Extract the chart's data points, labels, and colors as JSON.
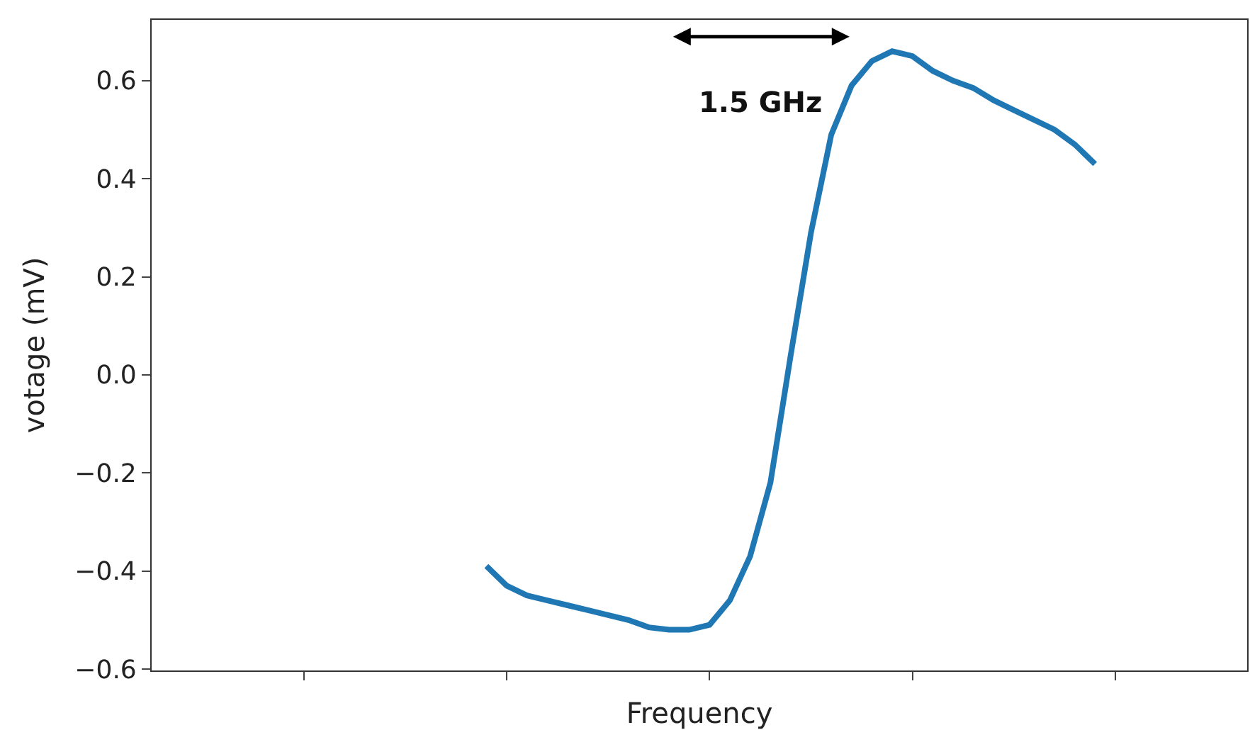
{
  "chart_data": {
    "type": "line",
    "xlabel": "Frequency",
    "ylabel": "votage (mV)",
    "categories": [
      null,
      null,
      null,
      null,
      null,
      null,
      null,
      null,
      null,
      null,
      null,
      null,
      null,
      null,
      null,
      null,
      null,
      null,
      null,
      null,
      null,
      null,
      null,
      null,
      null,
      null,
      null,
      null,
      null,
      null,
      null,
      null,
      null,
      null,
      null,
      null,
      null,
      null,
      null,
      null,
      null,
      null,
      null,
      null,
      null,
      null,
      null,
      null,
      null,
      null,
      null,
      null,
      null,
      null
    ],
    "series": [
      {
        "color": "#1f77b4",
        "values": [
          null,
          null,
          null,
          null,
          null,
          null,
          null,
          null,
          null,
          null,
          null,
          null,
          null,
          null,
          null,
          null,
          -0.39,
          -0.43,
          -0.45,
          -0.46,
          -0.47,
          -0.48,
          -0.49,
          -0.5,
          -0.515,
          -0.52,
          -0.52,
          -0.51,
          -0.46,
          -0.37,
          -0.22,
          0.04,
          0.29,
          0.49,
          0.59,
          0.64,
          0.66,
          0.65,
          0.62,
          0.6,
          0.585,
          0.56,
          0.54,
          0.52,
          0.5,
          0.47,
          0.43,
          null,
          null,
          null,
          null,
          null,
          null,
          null
        ]
      }
    ],
    "ylim": [
      -0.603,
      0.724
    ],
    "yticks": [
      {
        "value": -0.6,
        "label": "−0.6"
      },
      {
        "value": -0.4,
        "label": "−0.4"
      },
      {
        "value": -0.2,
        "label": "−0.2"
      },
      {
        "value": 0,
        "label": "0.0"
      },
      {
        "value": 0.2,
        "label": "0.2"
      },
      {
        "value": 0.4,
        "label": "0.4"
      },
      {
        "value": 0.6,
        "label": "0.6"
      }
    ],
    "annotations": [
      "1.5 GHz"
    ],
    "tick_labels": "y",
    "marker": "none",
    "line_style": "solid"
  }
}
